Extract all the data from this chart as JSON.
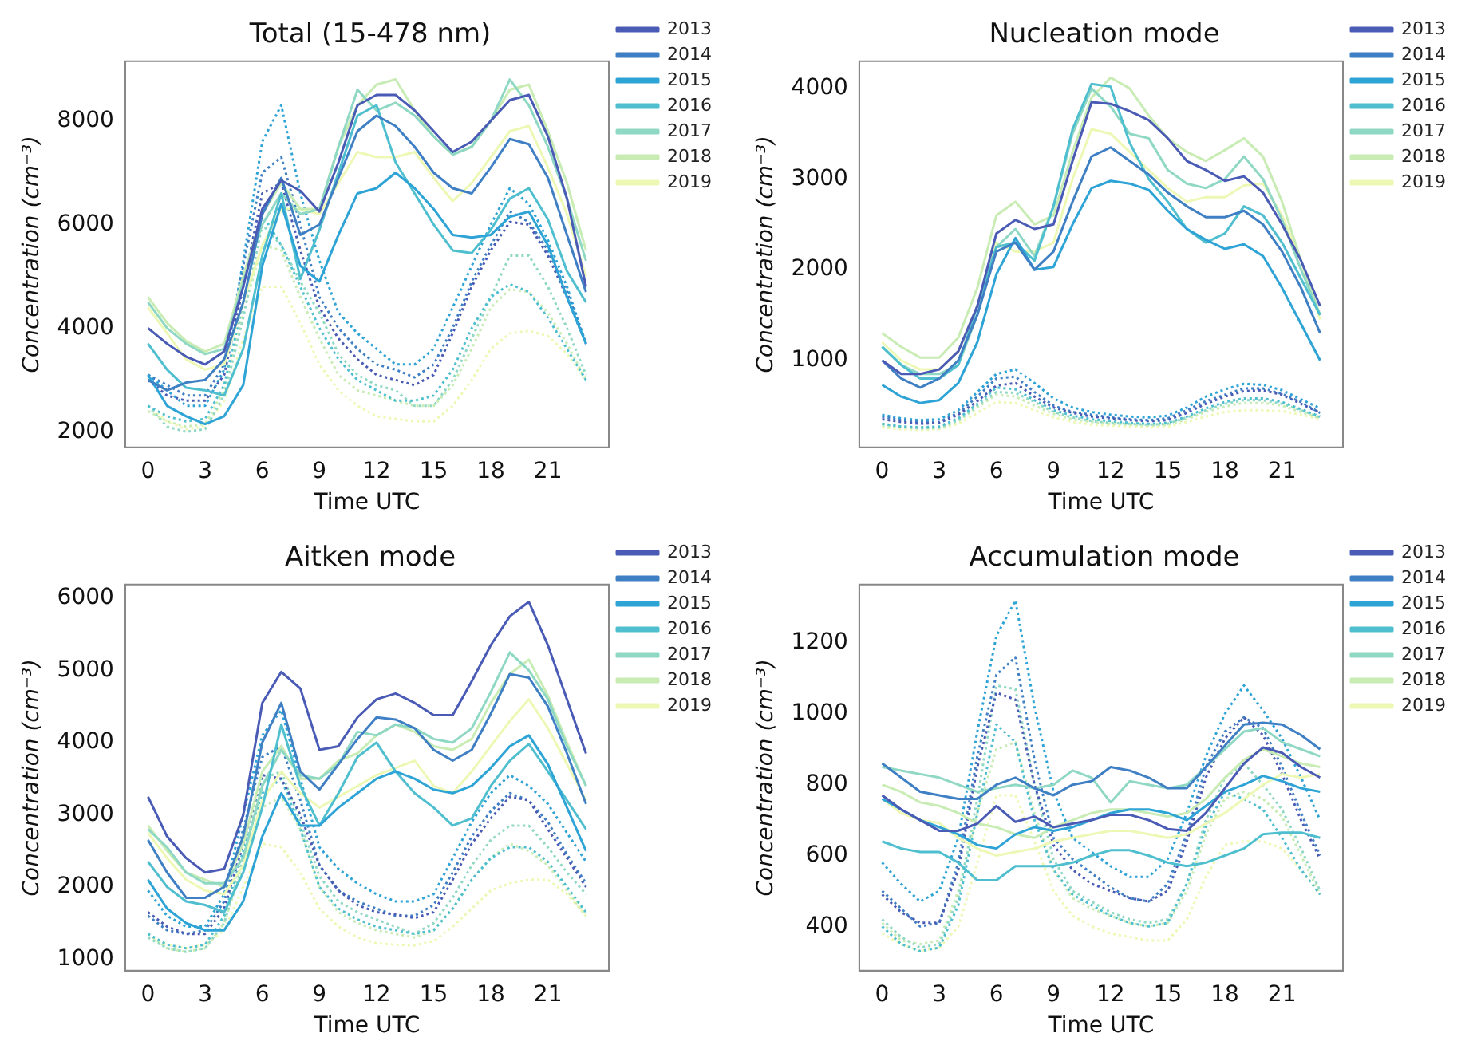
{
  "chart_data": [
    {
      "type": "line",
      "title": "Total (15-478 nm)",
      "xlabel": "Time UTC",
      "ylabel": "Concentration (cm⁻³)",
      "x": [
        0,
        1,
        2,
        3,
        4,
        5,
        6,
        7,
        8,
        9,
        10,
        11,
        12,
        13,
        14,
        15,
        16,
        17,
        18,
        19,
        20,
        21,
        22,
        23
      ],
      "xlim": [
        -1.2,
        24.2
      ],
      "xticks": [
        0,
        3,
        6,
        9,
        12,
        15,
        18,
        21
      ],
      "ylim": [
        1700,
        9150
      ],
      "yticks": [
        2000,
        4000,
        6000,
        8000
      ],
      "grid": false,
      "legend": "right",
      "marker": "none",
      "series": [
        {
          "name": "2013",
          "color": "#4a5bb5",
          "line_style": "solid",
          "values": [
            4000,
            3700,
            3450,
            3300,
            3550,
            4800,
            6300,
            6850,
            6650,
            6250,
            7200,
            8300,
            8500,
            8500,
            8200,
            7800,
            7400,
            7600,
            8000,
            8400,
            8500,
            7700,
            6500,
            4800
          ]
        },
        {
          "name": "2014",
          "color": "#3f7fc4",
          "line_style": "solid",
          "values": [
            3000,
            2800,
            2950,
            3000,
            3400,
            4500,
            6200,
            6900,
            5800,
            6000,
            6900,
            7800,
            8100,
            7900,
            7500,
            7000,
            6700,
            6600,
            7100,
            7650,
            7550,
            6900,
            5800,
            4700
          ]
        },
        {
          "name": "2015",
          "color": "#2ea3d6",
          "line_style": "solid",
          "values": [
            3100,
            2500,
            2300,
            2150,
            2300,
            2900,
            5200,
            6400,
            5200,
            4900,
            5800,
            6600,
            6700,
            7000,
            6700,
            6300,
            5800,
            5750,
            5800,
            6150,
            6250,
            5600,
            4600,
            3700
          ]
        },
        {
          "name": "2016",
          "color": "#4fbfcf",
          "line_style": "solid",
          "values": [
            3700,
            3200,
            2850,
            2800,
            2700,
            3600,
            5400,
            6600,
            4950,
            5900,
            7000,
            8100,
            8300,
            7200,
            6600,
            6000,
            5500,
            5450,
            5900,
            6500,
            6700,
            6100,
            5100,
            4500
          ]
        },
        {
          "name": "2017",
          "color": "#8fd8c3",
          "line_style": "solid",
          "values": [
            4500,
            4000,
            3700,
            3500,
            3600,
            4900,
            6000,
            6600,
            6200,
            6300,
            7500,
            8600,
            8200,
            8350,
            8100,
            7700,
            7350,
            7500,
            8000,
            8800,
            8300,
            7500,
            6500,
            5300
          ]
        },
        {
          "name": "2018",
          "color": "#c8ecb4",
          "line_style": "solid",
          "values": [
            4600,
            4100,
            3750,
            3550,
            3700,
            5000,
            6200,
            6800,
            6300,
            6300,
            7500,
            8300,
            8700,
            8800,
            8200,
            7700,
            7350,
            7500,
            8000,
            8600,
            8700,
            7800,
            6800,
            5500
          ]
        },
        {
          "name": "2019",
          "color": "#eef8b5",
          "line_style": "solid",
          "values": [
            4400,
            3900,
            3400,
            3200,
            3300,
            4500,
            5600,
            6300,
            6300,
            6200,
            6800,
            7400,
            7300,
            7300,
            7400,
            6900,
            6450,
            6800,
            7300,
            7800,
            7900,
            7100,
            6200,
            5000
          ]
        },
        {
          "color": "#4a5bb5",
          "line_style": "dotted",
          "values": [
            3000,
            2700,
            2600,
            2600,
            3100,
            4800,
            6600,
            6800,
            5500,
            4400,
            3800,
            3400,
            3100,
            3000,
            2900,
            3100,
            3900,
            4800,
            5500,
            6050,
            6000,
            5400,
            4600,
            3700
          ]
        },
        {
          "color": "#3f7fc4",
          "line_style": "dotted",
          "values": [
            3100,
            2900,
            2700,
            2700,
            3300,
            5200,
            7000,
            7300,
            6000,
            4600,
            4000,
            3600,
            3300,
            3200,
            3050,
            3300,
            4000,
            4900,
            5600,
            6250,
            6050,
            5500,
            4700,
            3700
          ]
        },
        {
          "color": "#2ea3d6",
          "line_style": "dotted",
          "values": [
            3100,
            2800,
            2500,
            2500,
            3200,
            5300,
            7600,
            8300,
            6600,
            5300,
            4300,
            3900,
            3600,
            3300,
            3300,
            3600,
            4400,
            5200,
            6000,
            6700,
            6400,
            5700,
            4800,
            3700
          ]
        },
        {
          "color": "#4fbfcf",
          "line_style": "dotted",
          "values": [
            2500,
            2300,
            2200,
            2250,
            2900,
            4500,
            6200,
            5600,
            4800,
            4000,
            3400,
            3000,
            2800,
            2600,
            2600,
            2700,
            3200,
            4000,
            4600,
            4850,
            4700,
            4200,
            3600,
            3000
          ]
        },
        {
          "color": "#8fd8c3",
          "line_style": "dotted",
          "values": [
            2500,
            2100,
            2000,
            2050,
            2700,
            4200,
            6000,
            5600,
            4900,
            4300,
            3500,
            3100,
            2900,
            2800,
            2500,
            2500,
            3000,
            3800,
            4600,
            5400,
            5400,
            4800,
            4000,
            3100
          ]
        },
        {
          "color": "#c8ecb4",
          "line_style": "dotted",
          "values": [
            2400,
            2200,
            2100,
            2150,
            2800,
            4300,
            5600,
            5500,
            4600,
            3800,
            3100,
            2800,
            2700,
            2600,
            2500,
            2500,
            2900,
            3600,
            4400,
            4750,
            4700,
            4300,
            3700,
            3000
          ]
        },
        {
          "color": "#eef8b5",
          "line_style": "dotted",
          "values": [
            2500,
            2200,
            2050,
            2100,
            2600,
            3800,
            4800,
            4800,
            4100,
            3300,
            2800,
            2500,
            2300,
            2250,
            2200,
            2200,
            2500,
            3000,
            3600,
            3900,
            3950,
            3850,
            3500,
            3000
          ]
        }
      ]
    },
    {
      "type": "line",
      "title": "Nucleation mode",
      "xlabel": "Time UTC",
      "ylabel": "Concentration (cm⁻³)",
      "x": [
        0,
        1,
        2,
        3,
        4,
        5,
        6,
        7,
        8,
        9,
        10,
        11,
        12,
        13,
        14,
        15,
        16,
        17,
        18,
        19,
        20,
        21,
        22,
        23
      ],
      "xlim": [
        -1.2,
        24.2
      ],
      "xticks": [
        0,
        3,
        6,
        9,
        12,
        15,
        18,
        21
      ],
      "ylim": [
        40,
        4300
      ],
      "yticks": [
        1000,
        2000,
        3000,
        4000
      ],
      "grid": false,
      "legend": "right",
      "marker": "none",
      "series": [
        {
          "name": "2013",
          "color": "#4a5bb5",
          "line_style": "solid",
          "values": [
            1000,
            850,
            850,
            900,
            1100,
            1600,
            2400,
            2550,
            2450,
            2500,
            3200,
            3850,
            3830,
            3750,
            3650,
            3450,
            3200,
            3100,
            2980,
            3030,
            2850,
            2500,
            2100,
            1600
          ]
        },
        {
          "name": "2014",
          "color": "#3f7fc4",
          "line_style": "solid",
          "values": [
            1000,
            800,
            700,
            800,
            1000,
            1500,
            2200,
            2300,
            2000,
            2200,
            2750,
            3250,
            3350,
            3200,
            3050,
            2850,
            2700,
            2580,
            2580,
            2650,
            2500,
            2200,
            1800,
            1300
          ]
        },
        {
          "name": "2015",
          "color": "#2ea3d6",
          "line_style": "solid",
          "values": [
            730,
            600,
            530,
            560,
            750,
            1200,
            1950,
            2350,
            2000,
            2030,
            2500,
            2900,
            2980,
            2950,
            2880,
            2650,
            2450,
            2330,
            2230,
            2280,
            2150,
            1800,
            1400,
            1000
          ]
        },
        {
          "name": "2016",
          "color": "#4fbfcf",
          "line_style": "solid",
          "values": [
            1150,
            950,
            800,
            800,
            950,
            1600,
            2250,
            2300,
            2100,
            2700,
            3550,
            4050,
            4020,
            3400,
            3000,
            2750,
            2450,
            2300,
            2400,
            2700,
            2600,
            2300,
            1900,
            1500
          ]
        },
        {
          "name": "2017",
          "color": "#8fd8c3",
          "line_style": "solid",
          "values": [
            1150,
            950,
            850,
            850,
            950,
            1500,
            2250,
            2450,
            2150,
            2700,
            3500,
            4000,
            3800,
            3500,
            3450,
            3100,
            2950,
            2900,
            3000,
            3250,
            3000,
            2550,
            2000,
            1500
          ]
        },
        {
          "name": "2018",
          "color": "#c8ecb4",
          "line_style": "solid",
          "values": [
            1300,
            1150,
            1030,
            1030,
            1250,
            1800,
            2600,
            2750,
            2500,
            2600,
            3300,
            3900,
            4120,
            4000,
            3700,
            3450,
            3300,
            3200,
            3320,
            3450,
            3250,
            2750,
            2100,
            1500
          ]
        },
        {
          "name": "2019",
          "color": "#eef8b5",
          "line_style": "solid",
          "values": [
            1200,
            1000,
            900,
            900,
            1100,
            1600,
            2300,
            2200,
            2200,
            2300,
            3000,
            3550,
            3500,
            3300,
            3100,
            2900,
            2750,
            2800,
            2800,
            2930,
            2950,
            2600,
            2100,
            1450
          ]
        },
        {
          "color": "#4a5bb5",
          "line_style": "dotted",
          "values": [
            350,
            320,
            300,
            310,
            400,
            550,
            720,
            750,
            600,
            480,
            420,
            380,
            360,
            340,
            330,
            340,
            420,
            520,
            600,
            660,
            670,
            620,
            520,
            420
          ]
        },
        {
          "color": "#3f7fc4",
          "line_style": "dotted",
          "values": [
            380,
            340,
            320,
            320,
            420,
            600,
            800,
            820,
            650,
            500,
            430,
            400,
            370,
            350,
            340,
            360,
            450,
            550,
            620,
            690,
            690,
            630,
            540,
            420
          ]
        },
        {
          "color": "#2ea3d6",
          "line_style": "dotted",
          "values": [
            400,
            360,
            340,
            350,
            450,
            650,
            850,
            900,
            750,
            580,
            480,
            430,
            400,
            380,
            370,
            390,
            480,
            600,
            680,
            740,
            730,
            670,
            570,
            470
          ]
        },
        {
          "color": "#4fbfcf",
          "line_style": "dotted",
          "values": [
            300,
            270,
            260,
            270,
            360,
            520,
            700,
            680,
            560,
            450,
            390,
            350,
            330,
            310,
            300,
            310,
            380,
            470,
            540,
            580,
            580,
            540,
            460,
            380
          ]
        },
        {
          "color": "#8fd8c3",
          "line_style": "dotted",
          "values": [
            300,
            270,
            250,
            260,
            340,
            500,
            650,
            640,
            540,
            430,
            370,
            330,
            310,
            300,
            290,
            300,
            370,
            450,
            520,
            560,
            560,
            520,
            450,
            370
          ]
        },
        {
          "color": "#c8ecb4",
          "line_style": "dotted",
          "values": [
            280,
            260,
            250,
            250,
            330,
            480,
            620,
            600,
            500,
            410,
            350,
            320,
            300,
            290,
            280,
            290,
            350,
            430,
            490,
            530,
            530,
            500,
            430,
            360
          ]
        },
        {
          "color": "#eef8b5",
          "line_style": "dotted",
          "values": [
            260,
            240,
            230,
            240,
            300,
            420,
            540,
            530,
            450,
            370,
            320,
            290,
            280,
            270,
            260,
            270,
            320,
            380,
            430,
            450,
            450,
            440,
            400,
            350
          ]
        }
      ]
    },
    {
      "type": "line",
      "title": "Aitken mode",
      "xlabel": "Time UTC",
      "ylabel": "Concentration (cm⁻³)",
      "x": [
        0,
        1,
        2,
        3,
        4,
        5,
        6,
        7,
        8,
        9,
        10,
        11,
        12,
        13,
        14,
        15,
        16,
        17,
        18,
        19,
        20,
        21,
        22,
        23
      ],
      "xlim": [
        -1.2,
        24.2
      ],
      "xticks": [
        0,
        3,
        6,
        9,
        12,
        15,
        18,
        21
      ],
      "ylim": [
        840,
        6190
      ],
      "yticks": [
        1000,
        2000,
        3000,
        4000,
        5000,
        6000
      ],
      "grid": false,
      "legend": "right",
      "marker": "none",
      "series": [
        {
          "name": "2013",
          "color": "#4a5bb5",
          "line_style": "solid",
          "values": [
            3250,
            2700,
            2400,
            2200,
            2250,
            3000,
            4550,
            4980,
            4750,
            3900,
            3950,
            4350,
            4600,
            4680,
            4550,
            4380,
            4380,
            4850,
            5350,
            5750,
            5950,
            5350,
            4600,
            3850
          ]
        },
        {
          "name": "2014",
          "color": "#3f7fc4",
          "line_style": "solid",
          "values": [
            2650,
            2200,
            1850,
            1850,
            2000,
            2700,
            4000,
            4550,
            3600,
            3350,
            3700,
            4050,
            4350,
            4320,
            4200,
            3900,
            3750,
            3900,
            4400,
            4950,
            4900,
            4500,
            3850,
            3150
          ]
        },
        {
          "name": "2015",
          "color": "#2ea3d6",
          "line_style": "solid",
          "values": [
            2100,
            1700,
            1500,
            1400,
            1400,
            1800,
            2700,
            3300,
            2850,
            2850,
            3100,
            3300,
            3500,
            3600,
            3500,
            3350,
            3300,
            3400,
            3650,
            3950,
            4100,
            3700,
            3100,
            2500
          ]
        },
        {
          "name": "2016",
          "color": "#4fbfcf",
          "line_style": "solid",
          "values": [
            2350,
            2000,
            1800,
            1750,
            1650,
            2200,
            3100,
            4250,
            3400,
            2850,
            3300,
            3800,
            4000,
            3600,
            3300,
            3100,
            2850,
            2950,
            3400,
            3750,
            3980,
            3600,
            3200,
            2800
          ]
        },
        {
          "name": "2017",
          "color": "#8fd8c3",
          "line_style": "solid",
          "values": [
            2800,
            2550,
            2200,
            2050,
            2050,
            2400,
            3400,
            3900,
            3550,
            3500,
            3700,
            4150,
            4100,
            4250,
            4200,
            4050,
            4000,
            4200,
            4700,
            5250,
            5000,
            4600,
            3950,
            3400
          ]
        },
        {
          "name": "2018",
          "color": "#c8ecb4",
          "line_style": "solid",
          "values": [
            2850,
            2500,
            2200,
            2100,
            2000,
            2600,
            3600,
            3950,
            3500,
            3500,
            3750,
            3850,
            4100,
            4250,
            4150,
            3950,
            3900,
            4050,
            4550,
            4950,
            5150,
            4650,
            4000,
            3400
          ]
        },
        {
          "name": "2019",
          "color": "#eef8b5",
          "line_style": "solid",
          "values": [
            2750,
            2400,
            2100,
            1950,
            1900,
            2300,
            3200,
            3600,
            3300,
            3100,
            3250,
            3400,
            3550,
            3650,
            3750,
            3400,
            3300,
            3600,
            3950,
            4300,
            4600,
            4200,
            3700,
            3200
          ]
        },
        {
          "color": "#4a5bb5",
          "line_style": "dotted",
          "values": [
            1650,
            1450,
            1350,
            1350,
            1700,
            2600,
            3550,
            3500,
            3000,
            2300,
            1950,
            1750,
            1650,
            1620,
            1570,
            1650,
            2100,
            2600,
            2950,
            3250,
            3200,
            2800,
            2400,
            2000
          ]
        },
        {
          "color": "#3f7fc4",
          "line_style": "dotted",
          "values": [
            1600,
            1400,
            1350,
            1400,
            1800,
            2800,
            3800,
            3950,
            3200,
            2300,
            1950,
            1800,
            1700,
            1600,
            1600,
            1750,
            2200,
            2700,
            3050,
            3300,
            3200,
            2900,
            2450,
            2050
          ]
        },
        {
          "color": "#2ea3d6",
          "line_style": "dotted",
          "values": [
            1950,
            1600,
            1450,
            1450,
            1900,
            3000,
            4100,
            4450,
            3500,
            2550,
            2250,
            2050,
            1900,
            1800,
            1800,
            1900,
            2400,
            2900,
            3300,
            3550,
            3400,
            3150,
            2750,
            2350
          ]
        },
        {
          "color": "#4fbfcf",
          "line_style": "dotted",
          "values": [
            1350,
            1200,
            1150,
            1200,
            1600,
            2500,
            3300,
            3500,
            2800,
            2000,
            1700,
            1550,
            1450,
            1400,
            1350,
            1400,
            1700,
            2100,
            2400,
            2550,
            2550,
            2350,
            2000,
            1650
          ]
        },
        {
          "color": "#8fd8c3",
          "line_style": "dotted",
          "values": [
            1300,
            1150,
            1100,
            1150,
            1500,
            2400,
            3500,
            3600,
            2900,
            2150,
            1800,
            1650,
            1550,
            1450,
            1350,
            1500,
            1850,
            2300,
            2650,
            2850,
            2850,
            2550,
            2200,
            1900
          ]
        },
        {
          "color": "#c8ecb4",
          "line_style": "dotted",
          "values": [
            1350,
            1150,
            1100,
            1150,
            1500,
            2300,
            3100,
            3250,
            2800,
            2000,
            1650,
            1500,
            1400,
            1350,
            1300,
            1400,
            1700,
            2100,
            2400,
            2600,
            2500,
            2300,
            1950,
            1600
          ]
        },
        {
          "color": "#eef8b5",
          "line_style": "dotted",
          "values": [
            1300,
            1200,
            1150,
            1200,
            1400,
            2000,
            2600,
            2550,
            2200,
            1700,
            1450,
            1300,
            1220,
            1200,
            1190,
            1250,
            1450,
            1700,
            1950,
            2050,
            2100,
            2100,
            1900,
            1600
          ]
        }
      ]
    },
    {
      "type": "line",
      "title": "Accumulation mode",
      "xlabel": "Time UTC",
      "ylabel": "Concentration (cm⁻³)",
      "x": [
        0,
        1,
        2,
        3,
        4,
        5,
        6,
        7,
        8,
        9,
        10,
        11,
        12,
        13,
        14,
        15,
        16,
        17,
        18,
        19,
        20,
        21,
        22,
        23
      ],
      "xlim": [
        -1.2,
        24.2
      ],
      "xticks": [
        0,
        3,
        6,
        9,
        12,
        15,
        18,
        21
      ],
      "ylim": [
        275,
        1365
      ],
      "yticks": [
        400,
        600,
        800,
        1000,
        1200
      ],
      "grid": false,
      "legend": "right",
      "marker": "none",
      "series": [
        {
          "name": "2013",
          "color": "#4a5bb5",
          "line_style": "solid",
          "values": [
            770,
            730,
            700,
            670,
            670,
            690,
            740,
            695,
            710,
            680,
            690,
            700,
            715,
            715,
            700,
            675,
            670,
            720,
            790,
            860,
            905,
            890,
            850,
            820
          ]
        },
        {
          "name": "2014",
          "color": "#3f7fc4",
          "line_style": "solid",
          "values": [
            860,
            820,
            780,
            770,
            760,
            760,
            800,
            820,
            790,
            770,
            800,
            810,
            850,
            840,
            820,
            790,
            790,
            850,
            910,
            970,
            975,
            970,
            940,
            900
          ]
        },
        {
          "name": "2015",
          "color": "#2ea3d6",
          "line_style": "solid",
          "values": [
            760,
            730,
            700,
            680,
            660,
            630,
            620,
            660,
            680,
            670,
            680,
            700,
            720,
            730,
            730,
            720,
            700,
            740,
            780,
            800,
            825,
            810,
            790,
            780
          ]
        },
        {
          "name": "2016",
          "color": "#4fbfcf",
          "line_style": "solid",
          "values": [
            640,
            620,
            610,
            610,
            580,
            530,
            530,
            570,
            570,
            570,
            580,
            600,
            615,
            615,
            600,
            580,
            570,
            580,
            600,
            620,
            660,
            665,
            665,
            650
          ]
        },
        {
          "name": "2017",
          "color": "#8fd8c3",
          "line_style": "solid",
          "values": [
            850,
            840,
            830,
            820,
            800,
            780,
            790,
            800,
            790,
            800,
            840,
            820,
            750,
            810,
            800,
            790,
            800,
            850,
            900,
            950,
            960,
            920,
            900,
            880
          ]
        },
        {
          "name": "2018",
          "color": "#c8ecb4",
          "line_style": "solid",
          "values": [
            800,
            780,
            750,
            740,
            720,
            690,
            680,
            660,
            650,
            680,
            700,
            720,
            730,
            730,
            720,
            710,
            720,
            760,
            820,
            870,
            900,
            880,
            860,
            850
          ]
        },
        {
          "name": "2019",
          "color": "#eef8b5",
          "line_style": "solid",
          "values": [
            760,
            720,
            700,
            692,
            650,
            620,
            600,
            610,
            620,
            640,
            650,
            660,
            670,
            670,
            660,
            650,
            660,
            690,
            720,
            760,
            800,
            830,
            820,
            830
          ]
        },
        {
          "color": "#4a5bb5",
          "line_style": "dotted",
          "values": [
            490,
            440,
            410,
            410,
            560,
            850,
            1060,
            1040,
            800,
            630,
            560,
            520,
            500,
            480,
            470,
            500,
            640,
            820,
            930,
            990,
            940,
            830,
            700,
            590
          ]
        },
        {
          "color": "#3f7fc4",
          "line_style": "dotted",
          "values": [
            500,
            450,
            400,
            410,
            580,
            880,
            1110,
            1160,
            870,
            650,
            590,
            550,
            510,
            480,
            470,
            520,
            660,
            850,
            950,
            990,
            960,
            850,
            720,
            600
          ]
        },
        {
          "color": "#2ea3d6",
          "line_style": "dotted",
          "values": [
            580,
            520,
            470,
            500,
            650,
            950,
            1220,
            1320,
            1020,
            780,
            650,
            610,
            570,
            540,
            540,
            590,
            720,
            880,
            1000,
            1080,
            1010,
            930,
            820,
            700
          ]
        },
        {
          "color": "#4fbfcf",
          "line_style": "dotted",
          "values": [
            400,
            350,
            330,
            340,
            460,
            720,
            970,
            920,
            700,
            560,
            490,
            460,
            430,
            410,
            400,
            410,
            520,
            680,
            780,
            760,
            730,
            650,
            560,
            490
          ]
        },
        {
          "color": "#8fd8c3",
          "line_style": "dotted",
          "values": [
            420,
            370,
            340,
            350,
            480,
            760,
            1080,
            1070,
            800,
            590,
            500,
            470,
            440,
            420,
            410,
            420,
            520,
            700,
            820,
            860,
            800,
            730,
            620,
            500
          ]
        },
        {
          "color": "#c8ecb4",
          "line_style": "dotted",
          "values": [
            410,
            360,
            350,
            360,
            500,
            720,
            900,
            920,
            720,
            560,
            480,
            450,
            430,
            410,
            400,
            410,
            500,
            660,
            760,
            780,
            760,
            710,
            600,
            490
          ]
        },
        {
          "color": "#eef8b5",
          "line_style": "dotted",
          "values": [
            380,
            350,
            330,
            340,
            400,
            580,
            770,
            770,
            640,
            500,
            430,
            400,
            380,
            370,
            360,
            360,
            420,
            540,
            630,
            640,
            640,
            620,
            560,
            490
          ]
        }
      ]
    }
  ]
}
